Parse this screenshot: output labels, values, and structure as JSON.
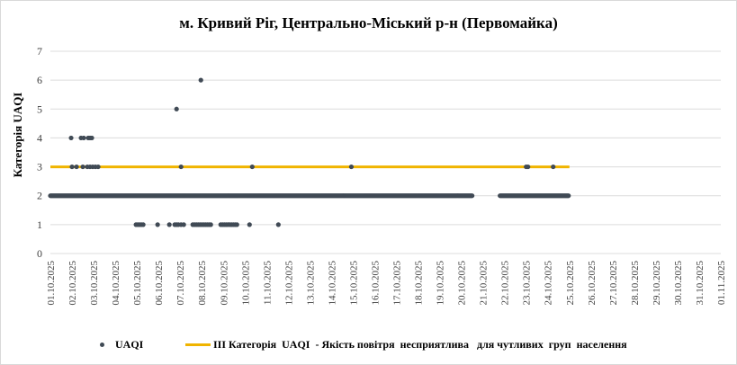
{
  "title": "м. Кривий Ріг, Центрально-Міський р-н (Первомайка)",
  "colors": {
    "uaqi": "#404a55",
    "threshold": "#f0b400",
    "grid": "#dcdcdc"
  },
  "chart_data": {
    "type": "scatter",
    "title": "м. Кривий Ріг, Центрально-Міський р-н (Первомайка)",
    "xlabel": "",
    "ylabel": "Категорія UAQI",
    "ylim": [
      0,
      7
    ],
    "yticks": [
      "0",
      "1",
      "2",
      "3",
      "4",
      "5",
      "6",
      "7"
    ],
    "xlim": [
      "01.10.2025",
      "01.11.2025"
    ],
    "xticks": [
      "01.10.2025",
      "02.10.2025",
      "03.10.2025",
      "04.10.2025",
      "05.10.2025",
      "06.10.2025",
      "07.10.2025",
      "08.10.2025",
      "09.10.2025",
      "10.10.2025",
      "11.10.2025",
      "12.10.2025",
      "13.10.2025",
      "14.10.2025",
      "15.10.2025",
      "16.10.2025",
      "17.10.2025",
      "18.10.2025",
      "19.10.2025",
      "20.10.2025",
      "21.10.2025",
      "22.10.2025",
      "23.10.2025",
      "24.10.2025",
      "25.10.2025",
      "26.10.2025",
      "27.10.2025",
      "28.10.2025",
      "29.10.2025",
      "30.10.2025",
      "31.10.2025",
      "01.11.2025"
    ],
    "grid": "horizontal",
    "legend_position": "bottom",
    "series": [
      {
        "name": "UAQI",
        "kind": "points",
        "runs": [
          {
            "from": "01.10.2025 00:00",
            "to": "20.10.2025 12:00",
            "y": 2
          },
          {
            "from": "21.10.2025 19:00",
            "to": "24.10.2025 23:00",
            "y": 2
          }
        ],
        "points": [
          [
            "02.10.2025 00:00",
            3
          ],
          [
            "02.10.2025 05:00",
            3
          ],
          [
            "02.10.2025 12:00",
            3
          ],
          [
            "02.10.2025 10:00",
            4
          ],
          [
            "02.10.2025 13:00",
            4
          ],
          [
            "01.10.2025 23:00",
            4
          ],
          [
            "02.10.2025 18:00",
            4
          ],
          [
            "02.10.2025 20:00",
            4
          ],
          [
            "02.10.2025 22:00",
            4
          ],
          [
            "02.10.2025 17:00",
            3
          ],
          [
            "02.10.2025 20:00",
            3
          ],
          [
            "02.10.2025 23:00",
            3
          ],
          [
            "03.10.2025 02:00",
            3
          ],
          [
            "03.10.2025 05:00",
            3
          ],
          [
            "04.10.2025 23:00",
            1
          ],
          [
            "05.10.2025 01:00",
            1
          ],
          [
            "05.10.2025 03:00",
            1
          ],
          [
            "05.10.2025 05:00",
            1
          ],
          [
            "05.10.2025 07:00",
            1
          ],
          [
            "05.10.2025 23:00",
            1
          ],
          [
            "06.10.2025 12:00",
            1
          ],
          [
            "06.10.2025 18:00",
            1
          ],
          [
            "06.10.2025 20:00",
            1
          ],
          [
            "06.10.2025 22:00",
            1
          ],
          [
            "06.10.2025 20:00",
            5
          ],
          [
            "07.10.2025 01:00",
            3
          ],
          [
            "07.10.2025 01:00",
            1
          ],
          [
            "07.10.2025 04:00",
            1
          ],
          [
            "07.10.2025 14:00",
            1
          ],
          [
            "07.10.2025 16:00",
            1
          ],
          [
            "07.10.2025 18:00",
            1
          ],
          [
            "07.10.2025 20:00",
            1
          ],
          [
            "07.10.2025 22:00",
            1
          ],
          [
            "08.10.2025 00:00",
            1
          ],
          [
            "08.10.2025 02:00",
            1
          ],
          [
            "08.10.2025 04:00",
            1
          ],
          [
            "08.10.2025 06:00",
            1
          ],
          [
            "08.10.2025 08:00",
            1
          ],
          [
            "08.10.2025 10:00",
            1
          ],
          [
            "07.10.2025 23:00",
            6
          ],
          [
            "08.10.2025 21:00",
            1
          ],
          [
            "08.10.2025 23:00",
            1
          ],
          [
            "09.10.2025 01:00",
            1
          ],
          [
            "09.10.2025 03:00",
            1
          ],
          [
            "09.10.2025 05:00",
            1
          ],
          [
            "09.10.2025 07:00",
            1
          ],
          [
            "09.10.2025 09:00",
            1
          ],
          [
            "09.10.2025 11:00",
            1
          ],
          [
            "09.10.2025 13:00",
            1
          ],
          [
            "09.10.2025 15:00",
            1
          ],
          [
            "10.10.2025 05:00",
            1
          ],
          [
            "10.10.2025 08:00",
            3
          ],
          [
            "11.10.2025 13:00",
            1
          ],
          [
            "14.10.2025 22:00",
            3
          ],
          [
            "23.10.2025 00:00",
            3
          ],
          [
            "23.10.2025 02:00",
            3
          ],
          [
            "24.10.2025 06:00",
            3
          ]
        ]
      },
      {
        "name": "ІІІ Категорія  UAQI  - Якість повітря  несприятлива   для чутливих  груп  населення",
        "kind": "line",
        "y": 3,
        "from": "01.10.2025 00:00",
        "to": "25.10.2025 00:00"
      }
    ]
  },
  "legend": {
    "uaqi_label": "UAQI",
    "threshold_label": "ІІІ Категорія  UAQI  - Якість повітря  несприятлива   для чутливих  груп  населення"
  }
}
